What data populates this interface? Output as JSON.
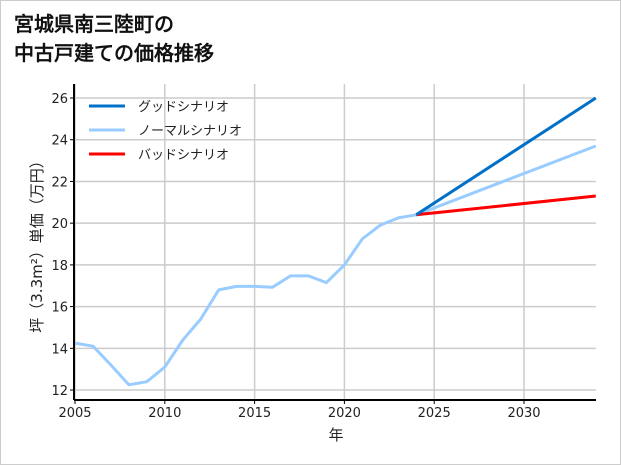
{
  "chart_data": {
    "type": "line",
    "title_line1": "宮城県南三陸町の",
    "title_line2": "中古戸建ての価格推移",
    "xlabel": "年",
    "ylabel": "坪（3.3m²）単価（万円）",
    "xlim": [
      2005,
      2034
    ],
    "ylim": [
      11.5,
      26.7
    ],
    "xticks": [
      2005,
      2010,
      2015,
      2020,
      2025,
      2030
    ],
    "yticks": [
      12,
      14,
      16,
      18,
      20,
      22,
      24,
      26
    ],
    "grid": true,
    "legend_position": "top-left",
    "series": [
      {
        "name": "グッドシナリオ",
        "color": "#0070c8",
        "x": [
          2024,
          2034
        ],
        "values": [
          20.4,
          26.0
        ]
      },
      {
        "name": "ノーマルシナリオ",
        "color": "#99ccff",
        "x": [
          2005,
          2006,
          2007,
          2008,
          2009,
          2010,
          2011,
          2012,
          2013,
          2014,
          2015,
          2016,
          2017,
          2018,
          2019,
          2020,
          2021,
          2022,
          2023,
          2024,
          2034
        ],
        "values": [
          14.25,
          14.1,
          13.2,
          12.25,
          12.4,
          13.1,
          14.4,
          15.4,
          16.8,
          16.97,
          16.97,
          16.93,
          17.47,
          17.47,
          17.15,
          18.0,
          19.25,
          19.9,
          20.25,
          20.4,
          23.7
        ]
      },
      {
        "name": "バッドシナリオ",
        "color": "#ff0000",
        "x": [
          2024,
          2034
        ],
        "values": [
          20.4,
          21.3
        ]
      }
    ]
  }
}
